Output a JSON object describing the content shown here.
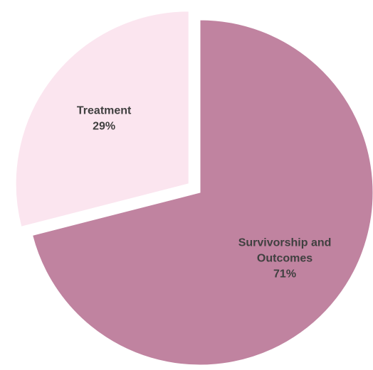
{
  "chart_data": {
    "type": "pie",
    "title": "",
    "slices": [
      {
        "name": "Survivorship and Outcomes",
        "label_lines": [
          "Survivorship and",
          "Outcomes"
        ],
        "value": 71,
        "value_label": "71%",
        "color": "#c083a0",
        "exploded": false
      },
      {
        "name": "Treatment",
        "label_lines": [
          "Treatment"
        ],
        "value": 29,
        "value_label": "29%",
        "color": "#fbe5ef",
        "exploded": true
      }
    ],
    "legend": "none",
    "label_color": "#404040"
  }
}
